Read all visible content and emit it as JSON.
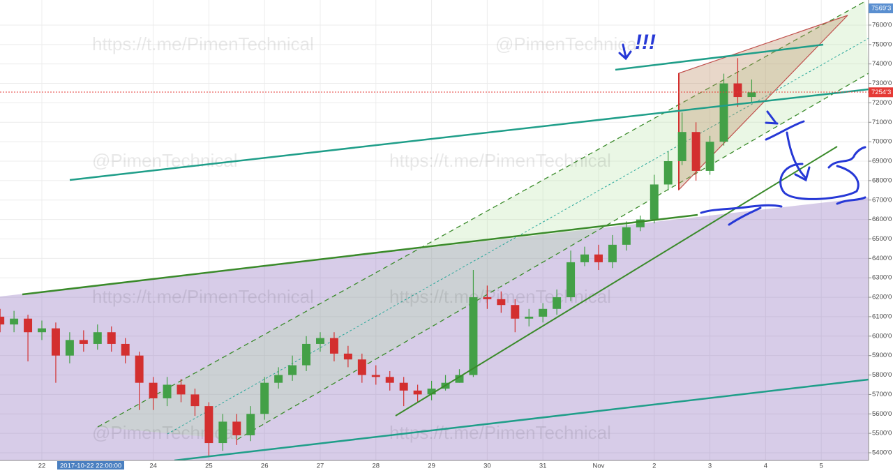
{
  "chart_data": {
    "type": "candlestick",
    "x": [
      21.25,
      21.5,
      21.75,
      22,
      22.25,
      22.5,
      22.75,
      23,
      23.25,
      23.5,
      23.75,
      24,
      24.25,
      24.5,
      24.75,
      25,
      25.25,
      25.5,
      25.75,
      26,
      26.25,
      26.5,
      26.75,
      27,
      27.25,
      27.5,
      27.75,
      28,
      28.25,
      28.5,
      28.75,
      29,
      29.25,
      29.5,
      29.75,
      30,
      30.25,
      30.5,
      30.75,
      31,
      31.25,
      31.5,
      31.75,
      32,
      32.25,
      32.5,
      32.75,
      33,
      33.25,
      33.5,
      33.75,
      34,
      34.25,
      34.5,
      34.75
    ],
    "open": [
      6100,
      6060,
      6090,
      6020,
      6040,
      5900,
      5980,
      5960,
      6020,
      5960,
      5900,
      5760,
      5680,
      5750,
      5700,
      5640,
      5450,
      5560,
      5490,
      5600,
      5760,
      5800,
      5850,
      5960,
      5990,
      5910,
      5880,
      5800,
      5790,
      5760,
      5720,
      5700,
      5730,
      5760,
      5800,
      6200,
      6190,
      6160,
      6090,
      6100,
      6140,
      6200,
      6380,
      6420,
      6380,
      6470,
      6560,
      6600,
      6780,
      6900,
      7050,
      6850,
      7000,
      7300,
      7230
    ],
    "high": [
      6140,
      6130,
      6110,
      6080,
      6070,
      6020,
      6030,
      6060,
      6050,
      5990,
      5920,
      5790,
      5790,
      5780,
      5730,
      5660,
      5600,
      5600,
      5640,
      5790,
      5840,
      5900,
      6000,
      6020,
      6020,
      5950,
      5910,
      5850,
      5820,
      5790,
      5750,
      5770,
      5800,
      5830,
      6340,
      6260,
      6230,
      6190,
      6140,
      6170,
      6240,
      6440,
      6460,
      6470,
      6520,
      6590,
      6620,
      6830,
      6950,
      7150,
      7100,
      7030,
      7350,
      7430,
      7320
    ],
    "low": [
      6020,
      6020,
      5870,
      5980,
      5760,
      5860,
      5920,
      5930,
      5920,
      5860,
      5620,
      5620,
      5640,
      5660,
      5590,
      5380,
      5410,
      5440,
      5460,
      5570,
      5730,
      5770,
      5820,
      5920,
      5870,
      5840,
      5760,
      5750,
      5720,
      5640,
      5660,
      5670,
      5720,
      5760,
      5790,
      6140,
      6120,
      6020,
      6050,
      6070,
      6110,
      6180,
      6360,
      6340,
      6350,
      6440,
      6540,
      6580,
      6750,
      6880,
      6800,
      6830,
      6980,
      7180,
      7200
    ],
    "close": [
      6060,
      6090,
      6020,
      6040,
      5900,
      5980,
      5960,
      6020,
      5960,
      5900,
      5760,
      5680,
      5750,
      5700,
      5640,
      5450,
      5560,
      5490,
      5600,
      5760,
      5800,
      5850,
      5960,
      5990,
      5910,
      5880,
      5800,
      5790,
      5760,
      5720,
      5700,
      5730,
      5760,
      5800,
      6200,
      6190,
      6160,
      6090,
      6100,
      6140,
      6200,
      6380,
      6420,
      6380,
      6470,
      6560,
      6600,
      6780,
      6900,
      7050,
      6850,
      7000,
      7300,
      7230,
      7254
    ],
    "up_color": "#43a047",
    "down_color": "#d32f2f",
    "xlim": [
      21.248,
      36.85
    ],
    "xticks": [
      22,
      24,
      25,
      26,
      27,
      28,
      29,
      30,
      31,
      {
        "value": 32,
        "label": "Nov"
      },
      {
        "value": 33,
        "label": "2"
      },
      {
        "value": 34,
        "label": "3"
      },
      {
        "value": 35,
        "label": "4"
      },
      {
        "value": 36,
        "label": "5"
      }
    ],
    "ylim": [
      5360.5,
      7729
    ],
    "yticks": [
      {
        "value": 5400,
        "label": "5400'0"
      },
      {
        "value": 5500,
        "label": "5500'0"
      },
      {
        "value": 5600,
        "label": "5600'0"
      },
      {
        "value": 5700,
        "label": "5700'0"
      },
      {
        "value": 5800,
        "label": "5800'0"
      },
      {
        "value": 5900,
        "label": "5900'0"
      },
      {
        "value": 6000,
        "label": "6000'0"
      },
      {
        "value": 6100,
        "label": "6100'0"
      },
      {
        "value": 6200,
        "label": "6200'0"
      },
      {
        "value": 6300,
        "label": "6300'0"
      },
      {
        "value": 6400,
        "label": "6400'0"
      },
      {
        "value": 6500,
        "label": "6500'0"
      },
      {
        "value": 6600,
        "label": "6600'0"
      },
      {
        "value": 6700,
        "label": "6700'0"
      },
      {
        "value": 6800,
        "label": "6800'0"
      },
      {
        "value": 6900,
        "label": "6900'0"
      },
      {
        "value": 7000,
        "label": "7000'0"
      },
      {
        "value": 7100,
        "label": "7100'0"
      },
      {
        "value": 7200,
        "label": "7200'0"
      },
      {
        "value": 7300,
        "label": "7300'0"
      },
      {
        "value": 7400,
        "label": "7400'0"
      },
      {
        "value": 7500,
        "label": "7500'0"
      },
      {
        "value": 7600,
        "label": "7600'0"
      }
    ],
    "grid": true,
    "price_labels": [
      {
        "value": 7254.3,
        "label": "7254'3"
      }
    ],
    "top_label": "7569'3",
    "date_badge": "2017-10-22 22:00:00",
    "annotation": "!!!",
    "watermarks": [
      "https://t.me/PimenTechnical",
      "@PimenTechnical",
      "@PimenTechnical",
      "https://t.me/PimenTechnical",
      "https://t.me/PimenTechnical",
      "https://t.me/PimenTechnical",
      "@PimenTechnical",
      "https://t.me/PimenTechnical"
    ]
  }
}
